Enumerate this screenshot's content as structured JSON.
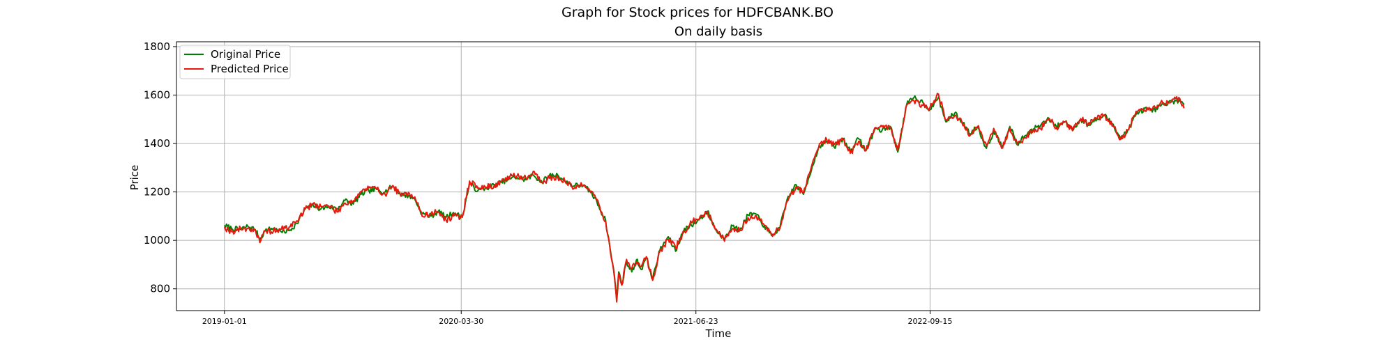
{
  "chart_data": {
    "type": "line",
    "suptitle": "Graph for Stock prices for HDFCBANK.BO",
    "title": "On daily basis",
    "xlabel": "Time",
    "ylabel": "Price",
    "x_axis_type": "date",
    "xlim": [
      "2018-10-01",
      "2024-06-08"
    ],
    "ylim": [
      710,
      1820
    ],
    "xticks": [
      "2019-01-01",
      "2020-03-30",
      "2021-06-23",
      "2022-09-15"
    ],
    "yticks": [
      800,
      1000,
      1200,
      1400,
      1600,
      1800
    ],
    "grid": true,
    "legend_position": "upper-left",
    "series": [
      {
        "name": "Original Price",
        "color": "#008000",
        "points": [
          [
            "2019-01-01",
            1062
          ],
          [
            "2019-01-15",
            1048
          ],
          [
            "2019-02-01",
            1045
          ],
          [
            "2019-02-15",
            1058
          ],
          [
            "2019-03-01",
            1045
          ],
          [
            "2019-03-10",
            1005
          ],
          [
            "2019-03-20",
            1040
          ],
          [
            "2019-04-05",
            1050
          ],
          [
            "2019-04-20",
            1035
          ],
          [
            "2019-05-05",
            1040
          ],
          [
            "2019-05-20",
            1070
          ],
          [
            "2019-06-05",
            1130
          ],
          [
            "2019-06-20",
            1145
          ],
          [
            "2019-07-05",
            1130
          ],
          [
            "2019-07-20",
            1140
          ],
          [
            "2019-08-05",
            1130
          ],
          [
            "2019-08-20",
            1165
          ],
          [
            "2019-09-05",
            1150
          ],
          [
            "2019-09-20",
            1190
          ],
          [
            "2019-10-05",
            1205
          ],
          [
            "2019-10-20",
            1210
          ],
          [
            "2019-11-05",
            1200
          ],
          [
            "2019-11-20",
            1225
          ],
          [
            "2019-12-05",
            1190
          ],
          [
            "2019-12-20",
            1185
          ],
          [
            "2020-01-01",
            1170
          ],
          [
            "2020-01-15",
            1110
          ],
          [
            "2020-02-01",
            1100
          ],
          [
            "2020-02-15",
            1120
          ],
          [
            "2020-03-01",
            1095
          ],
          [
            "2020-03-15",
            1115
          ],
          [
            "2020-04-01",
            1095
          ],
          [
            "2020-04-15",
            1235
          ],
          [
            "2020-05-01",
            1205
          ],
          [
            "2020-05-15",
            1215
          ],
          [
            "2020-06-01",
            1228
          ],
          [
            "2020-06-15",
            1240
          ],
          [
            "2020-07-01",
            1255
          ],
          [
            "2020-07-15",
            1260
          ],
          [
            "2020-08-01",
            1250
          ],
          [
            "2020-08-15",
            1270
          ],
          [
            "2020-09-01",
            1240
          ],
          [
            "2020-09-15",
            1268
          ],
          [
            "2020-10-01",
            1270
          ],
          [
            "2020-10-15",
            1245
          ],
          [
            "2020-11-01",
            1225
          ],
          [
            "2020-11-15",
            1230
          ],
          [
            "2020-12-01",
            1205
          ],
          [
            "2020-12-15",
            1160
          ],
          [
            "2021-01-01",
            1080
          ],
          [
            "2021-01-10",
            960
          ],
          [
            "2021-01-18",
            850
          ],
          [
            "2021-01-22",
            760
          ],
          [
            "2021-01-26",
            870
          ],
          [
            "2021-02-01",
            820
          ],
          [
            "2021-02-10",
            910
          ],
          [
            "2021-02-20",
            870
          ],
          [
            "2021-03-01",
            920
          ],
          [
            "2021-03-10",
            880
          ],
          [
            "2021-03-20",
            930
          ],
          [
            "2021-04-01",
            840
          ],
          [
            "2021-04-15",
            960
          ],
          [
            "2021-05-01",
            1015
          ],
          [
            "2021-05-15",
            955
          ],
          [
            "2021-06-01",
            1050
          ],
          [
            "2021-06-15",
            1060
          ],
          [
            "2021-07-01",
            1090
          ],
          [
            "2021-07-15",
            1120
          ],
          [
            "2021-08-01",
            1040
          ],
          [
            "2021-08-15",
            1010
          ],
          [
            "2021-09-01",
            1060
          ],
          [
            "2021-09-15",
            1040
          ],
          [
            "2021-10-01",
            1105
          ],
          [
            "2021-10-15",
            1110
          ],
          [
            "2021-11-01",
            1060
          ],
          [
            "2021-11-15",
            1020
          ],
          [
            "2021-12-01",
            1050
          ],
          [
            "2021-12-15",
            1170
          ],
          [
            "2022-01-01",
            1230
          ],
          [
            "2022-01-15",
            1190
          ],
          [
            "2022-02-01",
            1305
          ],
          [
            "2022-02-15",
            1390
          ],
          [
            "2022-03-01",
            1410
          ],
          [
            "2022-03-15",
            1385
          ],
          [
            "2022-04-01",
            1420
          ],
          [
            "2022-04-15",
            1370
          ],
          [
            "2022-05-01",
            1420
          ],
          [
            "2022-05-15",
            1370
          ],
          [
            "2022-06-01",
            1460
          ],
          [
            "2022-06-15",
            1455
          ],
          [
            "2022-07-01",
            1470
          ],
          [
            "2022-07-15",
            1365
          ],
          [
            "2022-08-01",
            1560
          ],
          [
            "2022-08-15",
            1590
          ],
          [
            "2022-09-01",
            1570
          ],
          [
            "2022-09-15",
            1540
          ],
          [
            "2022-10-01",
            1590
          ],
          [
            "2022-10-15",
            1490
          ],
          [
            "2022-11-01",
            1525
          ],
          [
            "2022-11-15",
            1490
          ],
          [
            "2022-12-01",
            1440
          ],
          [
            "2022-12-15",
            1470
          ],
          [
            "2023-01-01",
            1380
          ],
          [
            "2023-01-15",
            1450
          ],
          [
            "2023-02-01",
            1390
          ],
          [
            "2023-02-15",
            1470
          ],
          [
            "2023-03-01",
            1395
          ],
          [
            "2023-03-15",
            1430
          ],
          [
            "2023-04-01",
            1460
          ],
          [
            "2023-04-15",
            1475
          ],
          [
            "2023-05-01",
            1500
          ],
          [
            "2023-05-15",
            1470
          ],
          [
            "2023-06-01",
            1490
          ],
          [
            "2023-06-15",
            1460
          ],
          [
            "2023-07-01",
            1500
          ],
          [
            "2023-07-15",
            1475
          ],
          [
            "2023-08-01",
            1500
          ],
          [
            "2023-08-15",
            1515
          ],
          [
            "2023-09-01",
            1480
          ],
          [
            "2023-09-15",
            1420
          ],
          [
            "2023-10-01",
            1460
          ],
          [
            "2023-10-15",
            1520
          ],
          [
            "2023-11-01",
            1545
          ],
          [
            "2023-11-15",
            1530
          ],
          [
            "2023-12-01",
            1555
          ],
          [
            "2023-12-15",
            1565
          ],
          [
            "2024-01-01",
            1580
          ],
          [
            "2024-01-15",
            1560
          ]
        ]
      },
      {
        "name": "Predicted Price",
        "color": "#e8190c",
        "points": []
      }
    ]
  }
}
